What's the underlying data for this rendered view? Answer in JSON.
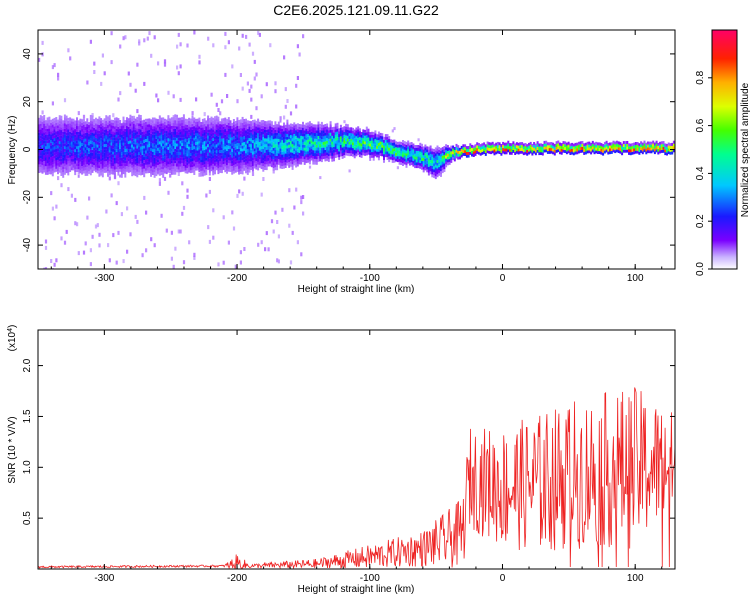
{
  "title": "C2E6.2025.121.09.11.G22",
  "colors": {
    "snr_line": "#ee2222",
    "axis": "#000000",
    "background": "#ffffff"
  },
  "chart_data": [
    {
      "type": "heatmap",
      "name": "spectrogram",
      "xlabel": "Height of straight line (km)",
      "ylabel": "Frequency (Hz)",
      "xlim": [
        -350,
        130
      ],
      "ylim": [
        -50,
        50
      ],
      "xticks": [
        -300,
        -200,
        -100,
        0,
        100
      ],
      "xtick_labels": [
        "-300",
        "-200",
        "-100",
        "0",
        "100"
      ],
      "yticks": [
        -40,
        -20,
        0,
        20,
        40
      ],
      "ytick_labels": [
        "-40",
        "-20",
        "0",
        "20",
        "40"
      ],
      "colorbar": {
        "label": "Normalized spectral amplitude",
        "range": [
          0,
          1
        ],
        "ticks": [
          0.0,
          0.2,
          0.4,
          0.6,
          0.8
        ],
        "tick_labels": [
          "0.0",
          "0.2",
          "0.4",
          "0.6",
          "0.8"
        ]
      },
      "ridge": {
        "x": [
          -350,
          -300,
          -250,
          -200,
          -150,
          -120,
          -100,
          -80,
          -60,
          -50,
          -40,
          -30,
          0,
          50,
          100,
          130
        ],
        "freq": [
          2,
          2,
          2,
          2,
          3,
          4,
          3,
          0,
          -3,
          -5,
          -1,
          0,
          1,
          1,
          1,
          1
        ],
        "peak_amplitude": [
          0.25,
          0.28,
          0.3,
          0.32,
          0.45,
          0.5,
          0.55,
          0.55,
          0.5,
          0.45,
          0.7,
          0.85,
          0.85,
          0.85,
          0.85,
          0.85
        ],
        "band_halfwidth_hz": [
          12,
          12,
          12,
          11,
          8,
          6,
          5,
          4,
          5,
          6,
          3,
          2,
          2,
          2,
          2,
          2
        ],
        "noise_cutoff_x": -150
      }
    },
    {
      "type": "line",
      "name": "snr",
      "xlabel": "Height of straight line (km)",
      "ylabel": "SNR (10 * V/V)",
      "multiplier_label": "(x10",
      "multiplier_exp": "4",
      "multiplier_close": ")",
      "xlim": [
        -350,
        130
      ],
      "ylim": [
        0,
        2.35
      ],
      "xticks": [
        -300,
        -200,
        -100,
        0,
        100
      ],
      "xtick_labels": [
        "-300",
        "-200",
        "-100",
        "0",
        "100"
      ],
      "yticks": [
        0.5,
        1.0,
        1.5,
        2.0
      ],
      "ytick_labels": [
        "0.5",
        "1.0",
        "1.5",
        "2.0"
      ],
      "envelope": {
        "x": [
          -350,
          -210,
          -200,
          -190,
          -140,
          -100,
          -60,
          -30,
          -25,
          0,
          30,
          60,
          100,
          130
        ],
        "base": [
          0.02,
          0.03,
          0.05,
          0.03,
          0.05,
          0.12,
          0.2,
          0.35,
          0.9,
          0.8,
          0.85,
          0.95,
          1.0,
          1.05
        ],
        "amplitude": [
          0.01,
          0.01,
          0.1,
          0.02,
          0.05,
          0.12,
          0.18,
          0.35,
          0.5,
          0.6,
          0.7,
          0.75,
          0.8,
          0.5
        ]
      },
      "samples": 900
    }
  ]
}
